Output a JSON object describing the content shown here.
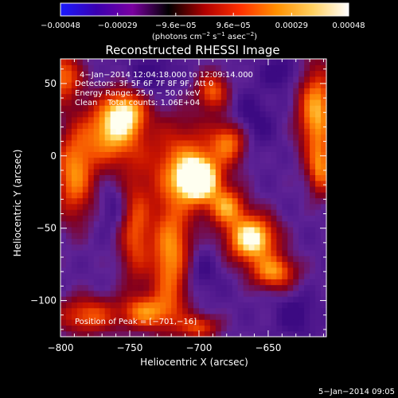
{
  "chart_data": {
    "type": "heatmap",
    "title": "Reconstructed RHESSI Image",
    "xlabel": "Heliocentric X (arcsec)",
    "ylabel": "Heliocentric Y (arcsec)",
    "xlim": [
      -800,
      -608
    ],
    "ylim": [
      -125,
      67
    ],
    "x_ticks": [
      -800,
      -750,
      -700,
      -650
    ],
    "x_tick_labels": [
      "−800",
      "−750",
      "−700",
      "−650"
    ],
    "y_ticks": [
      50,
      0,
      -50,
      -100
    ],
    "y_tick_labels": [
      "50",
      "0",
      "−50",
      "−100"
    ],
    "colorbar": {
      "range": [
        -0.00048,
        0.00048
      ],
      "ticks": [
        -0.00048,
        -0.00029,
        -9.6e-05,
        9.6e-05,
        0.00029,
        0.00048
      ],
      "tick_labels": [
        "−0.00048",
        "−0.00029",
        "−9.6e−05",
        "9.6e−05",
        "0.00029",
        "0.00048"
      ],
      "unit_prefix": "(photons cm",
      "unit_exp1": "−2",
      "unit_mid": " s",
      "unit_exp2": "−1",
      "unit_mid2": " asec",
      "unit_exp3": "−2",
      "unit_suffix": ")",
      "colors": [
        "#1a1aff",
        "#3a00b0",
        "#7a00a0",
        "#000000",
        "#b00000",
        "#ff3000",
        "#ff9000",
        "#ffd060",
        "#ffffff"
      ]
    },
    "annotations": {
      "time_range": "4−Jan−2014 12:04:18.000 to 12:09:14.000",
      "detectors": "Detectors: 3F 5F 6F 7F 8F 9F, Att 0",
      "energy": "Energy Range: 25.0 − 50.0 keV",
      "clean": "Clean    Total counts: 1.06E+04",
      "peak": "Position of Peak = [−701,−16]"
    },
    "footer_date": "5−Jan−2014 09:05",
    "peak": [
      -701,
      -16
    ],
    "blobs": [
      {
        "x": -701,
        "y": -16,
        "sx": 10,
        "sy": 10,
        "a": 1.0
      },
      {
        "x": -712,
        "y": -5,
        "sx": 20,
        "sy": 22,
        "a": 0.5
      },
      {
        "x": -763,
        "y": 17,
        "sx": 14,
        "sy": 16,
        "a": 0.72
      },
      {
        "x": -752,
        "y": 31,
        "sx": 10,
        "sy": 10,
        "a": 0.55
      },
      {
        "x": -790,
        "y": -12,
        "sx": 10,
        "sy": 22,
        "a": 0.62
      },
      {
        "x": -746,
        "y": -52,
        "sx": 8,
        "sy": 26,
        "a": 0.48
      },
      {
        "x": -720,
        "y": -72,
        "sx": 10,
        "sy": 28,
        "a": 0.7
      },
      {
        "x": -738,
        "y": -108,
        "sx": 12,
        "sy": 8,
        "a": 0.55
      },
      {
        "x": -780,
        "y": -110,
        "sx": 16,
        "sy": 9,
        "a": 0.5
      },
      {
        "x": -662,
        "y": -57,
        "sx": 12,
        "sy": 11,
        "a": 0.95
      },
      {
        "x": -680,
        "y": -35,
        "sx": 9,
        "sy": 9,
        "a": 0.6
      },
      {
        "x": -646,
        "y": -80,
        "sx": 11,
        "sy": 8,
        "a": 0.62
      },
      {
        "x": -678,
        "y": 10,
        "sx": 9,
        "sy": 10,
        "a": 0.55
      },
      {
        "x": -615,
        "y": 30,
        "sx": 9,
        "sy": 22,
        "a": 0.72
      },
      {
        "x": -612,
        "y": -10,
        "sx": 6,
        "sy": 12,
        "a": 0.5
      },
      {
        "x": -690,
        "y": 45,
        "sx": 8,
        "sy": 9,
        "a": 0.5
      },
      {
        "x": -798,
        "y": 55,
        "sx": 9,
        "sy": 12,
        "a": 0.55
      },
      {
        "x": -700,
        "y": -118,
        "sx": 10,
        "sy": 6,
        "a": 0.45
      }
    ],
    "cold_spots": [
      {
        "x": -705,
        "y": -80,
        "sx": 12,
        "sy": 12,
        "a": 0.5
      },
      {
        "x": -665,
        "y": 22,
        "sx": 12,
        "sy": 14,
        "a": 0.5
      },
      {
        "x": -735,
        "y": 55,
        "sx": 12,
        "sy": 10,
        "a": 0.45
      },
      {
        "x": -760,
        "y": -35,
        "sx": 8,
        "sy": 12,
        "a": 0.4
      },
      {
        "x": -630,
        "y": -110,
        "sx": 10,
        "sy": 10,
        "a": 0.45
      },
      {
        "x": -640,
        "y": 58,
        "sx": 10,
        "sy": 8,
        "a": 0.45
      }
    ]
  }
}
